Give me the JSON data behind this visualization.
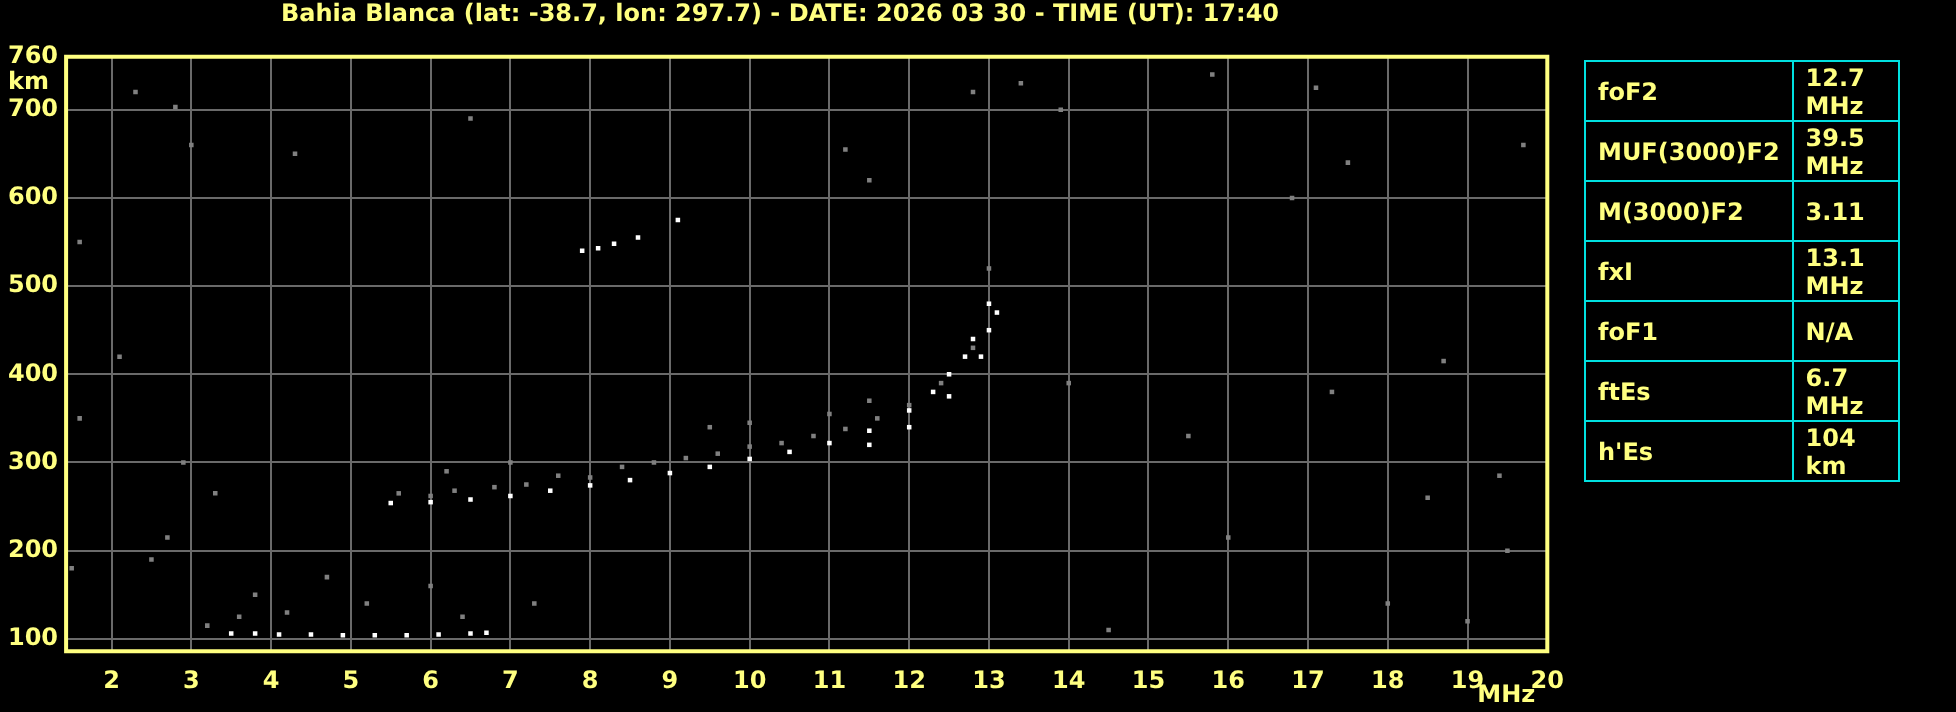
{
  "chart_data": {
    "type": "scatter",
    "title": "Bahia Blanca (lat: -38.7, lon: 297.7) - DATE: 2026 03 30 - TIME (UT): 17:40",
    "xlabel": "MHz",
    "ylabel": "km",
    "xlim": [
      1.43,
      20
    ],
    "ylim": [
      86,
      760
    ],
    "xticks": [
      2,
      3,
      4,
      5,
      6,
      7,
      8,
      9,
      10,
      11,
      12,
      13,
      14,
      15,
      16,
      17,
      18,
      19,
      20
    ],
    "yticks": [
      100,
      200,
      300,
      400,
      500,
      600,
      700,
      760
    ],
    "grid": true,
    "legend": false,
    "marker": "square",
    "annotations": [
      "foF2",
      "12.7 MHz",
      "MUF(3000)F2",
      "39.5 MHz",
      "M(3000)F2",
      "3.11",
      "fxI",
      "13.1 MHz",
      "foF1",
      "N/A",
      "ftEs",
      "6.7 MHz",
      "h'Es",
      "104 km"
    ],
    "series": [
      {
        "color": "#808080",
        "x": [
          5.6,
          6,
          6.3,
          6.8,
          7.2,
          7.6,
          8,
          8.4,
          8.8,
          9.2,
          9.6,
          10,
          10.4,
          10.8,
          11.2,
          11.6,
          12,
          12.4,
          12.8,
          13.0,
          6.2,
          7,
          9.5,
          10,
          11,
          11.5,
          3.6,
          3.8,
          4.2,
          4.7,
          5.2,
          6,
          3.2,
          6.4,
          1.6,
          2.3,
          2.8,
          3.0,
          4.3,
          6.5,
          11.2,
          11.5,
          12.8,
          13.9,
          2.1,
          1.5,
          2.5,
          2.9,
          14,
          15.5,
          17.3,
          18.5,
          19.5,
          16,
          18,
          19,
          14.5,
          15.8,
          17.5,
          19.7,
          18.7,
          16.8,
          2.7,
          3.3,
          7.3,
          1.6,
          19.4,
          17.1,
          13.4
        ],
        "values": [
          265,
          262,
          268,
          272,
          275,
          285,
          283,
          295,
          300,
          305,
          310,
          318,
          322,
          330,
          338,
          350,
          365,
          390,
          430,
          520,
          290,
          300,
          340,
          345,
          355,
          370,
          125,
          150,
          130,
          170,
          140,
          160,
          115,
          125,
          550,
          720,
          703,
          660,
          650,
          690,
          655,
          620,
          720,
          700,
          420,
          180,
          190,
          300,
          390,
          330,
          380,
          260,
          200,
          215,
          140,
          120,
          110,
          740,
          640,
          660,
          415,
          600,
          215,
          265,
          140,
          350,
          285,
          725,
          730
        ]
      },
      {
        "color": "#ffffff",
        "x": [
          5.5,
          6,
          6.5,
          7,
          7.5,
          8,
          8.5,
          9,
          9.5,
          10,
          10.5,
          11,
          11.5,
          12,
          12.3,
          12.5,
          12.7,
          12.8,
          13.0,
          11.5,
          12,
          12.5,
          12.9,
          13.0,
          13.1,
          3.5,
          3.8,
          4.1,
          4.5,
          4.9,
          5.3,
          5.7,
          6.1,
          6.5,
          6.7,
          7.9,
          8.1,
          8.3,
          8.6,
          9.1
        ],
        "values": [
          254,
          255,
          258,
          262,
          268,
          274,
          280,
          288,
          295,
          304,
          312,
          322,
          336,
          359,
          380,
          400,
          420,
          440,
          480,
          320,
          340,
          375,
          420,
          450,
          470,
          106,
          106,
          105,
          105,
          104,
          104,
          104,
          105,
          106,
          107,
          540,
          543,
          548,
          555,
          575
        ]
      }
    ]
  }
}
